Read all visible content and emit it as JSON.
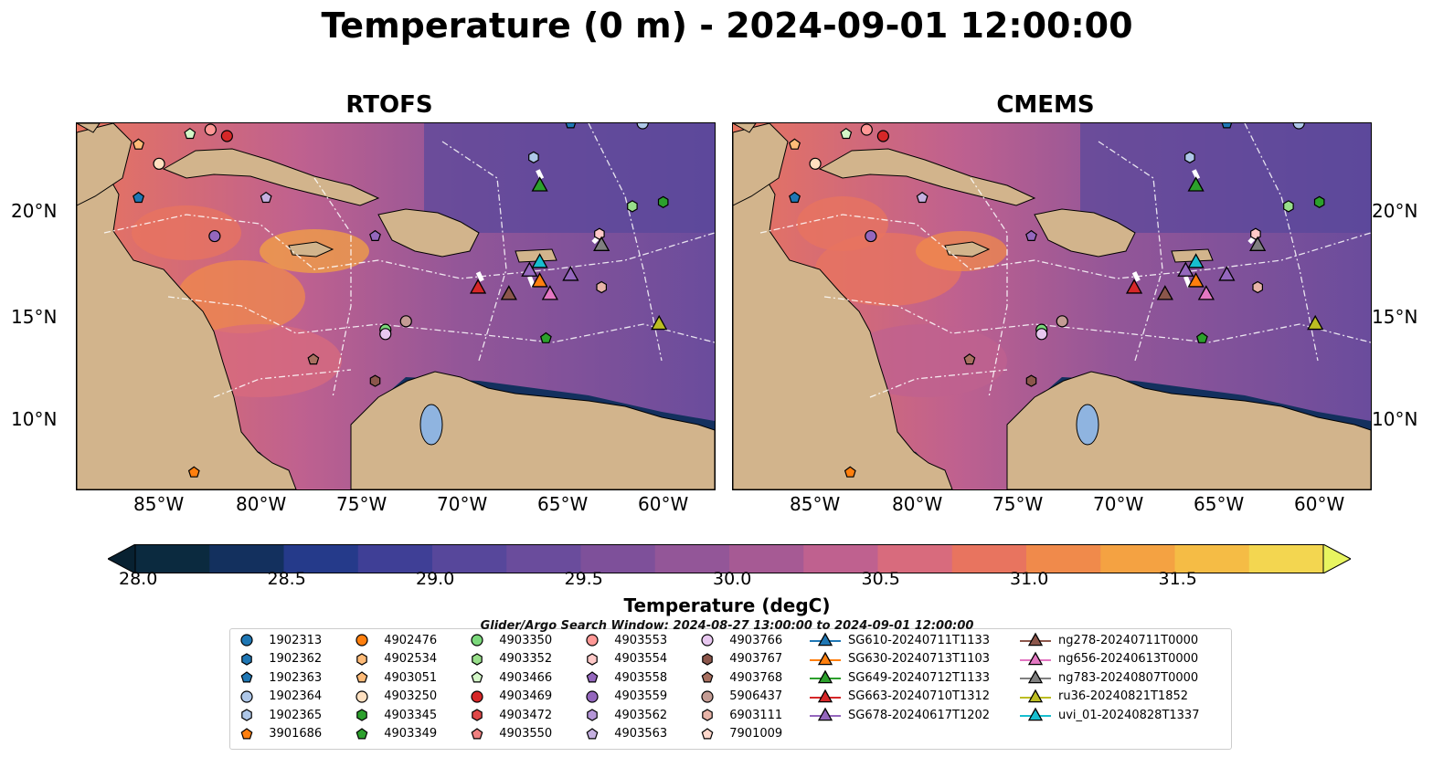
{
  "title": "Temperature (0 m) - 2024-09-01 12:00:00",
  "panels": [
    {
      "title": "RTOFS"
    },
    {
      "title": "CMEMS"
    }
  ],
  "axes": {
    "lon_ticks": [
      "85°W",
      "80°W",
      "75°W",
      "70°W",
      "65°W",
      "60°W"
    ],
    "lat_ticks": [
      "20°N",
      "15°N",
      "10°N"
    ]
  },
  "colorbar": {
    "label": "Temperature (degC)",
    "ticks": [
      "28.0",
      "28.5",
      "29.0",
      "29.5",
      "30.0",
      "30.5",
      "31.0",
      "31.5"
    ],
    "colors": [
      "#0b2a3f",
      "#13305e",
      "#253a8a",
      "#3f3f96",
      "#57479b",
      "#6a4c9c",
      "#7e509a",
      "#935698",
      "#a65a94",
      "#bf618f",
      "#d86b7d",
      "#e8745f",
      "#f08a4b",
      "#f4a242",
      "#f5bc45",
      "#f3d650"
    ],
    "under_color": "#082131",
    "over_color": "#e8f560"
  },
  "search_window": "Glider/Argo Search Window: 2024-08-27 13:00:00 to 2024-09-01 12:00:00",
  "legend": {
    "argo": [
      {
        "label": "1902313",
        "shape": "circle",
        "color": "#1f77b4"
      },
      {
        "label": "1902362",
        "shape": "hexagon",
        "color": "#1f77b4"
      },
      {
        "label": "1902363",
        "shape": "pentagon",
        "color": "#1f77b4"
      },
      {
        "label": "1902364",
        "shape": "circle",
        "color": "#aec7e8"
      },
      {
        "label": "1902365",
        "shape": "hexagon",
        "color": "#aec7e8"
      },
      {
        "label": "3901686",
        "shape": "pentagon",
        "color": "#ff7f0e"
      },
      {
        "label": "4902476",
        "shape": "circle",
        "color": "#ff7f0e"
      },
      {
        "label": "4902534",
        "shape": "hexagon",
        "color": "#ffbb78"
      },
      {
        "label": "4903051",
        "shape": "pentagon",
        "color": "#ffbb78"
      },
      {
        "label": "4903250",
        "shape": "circle",
        "color": "#ffe0c0"
      },
      {
        "label": "4903345",
        "shape": "hexagon",
        "color": "#2ca02c"
      },
      {
        "label": "4903349",
        "shape": "pentagon",
        "color": "#2ca02c"
      },
      {
        "label": "4903350",
        "shape": "circle",
        "color": "#7bd87b"
      },
      {
        "label": "4903352",
        "shape": "hexagon",
        "color": "#98df8a"
      },
      {
        "label": "4903466",
        "shape": "pentagon",
        "color": "#d4f7c8"
      },
      {
        "label": "4903469",
        "shape": "circle",
        "color": "#d62728"
      },
      {
        "label": "4903472",
        "shape": "hexagon",
        "color": "#e04848"
      },
      {
        "label": "4903550",
        "shape": "pentagon",
        "color": "#f08080"
      },
      {
        "label": "4903553",
        "shape": "circle",
        "color": "#ff9896"
      },
      {
        "label": "4903554",
        "shape": "hexagon",
        "color": "#ffc9c8"
      },
      {
        "label": "4903558",
        "shape": "pentagon",
        "color": "#9467bd"
      },
      {
        "label": "4903559",
        "shape": "circle",
        "color": "#9467bd"
      },
      {
        "label": "4903562",
        "shape": "hexagon",
        "color": "#b596d8"
      },
      {
        "label": "4903563",
        "shape": "pentagon",
        "color": "#c5b0e0"
      },
      {
        "label": "4903766",
        "shape": "circle",
        "color": "#e8c8f0"
      },
      {
        "label": "4903767",
        "shape": "hexagon",
        "color": "#8c564b"
      },
      {
        "label": "4903768",
        "shape": "pentagon",
        "color": "#a87060"
      },
      {
        "label": "5906437",
        "shape": "circle",
        "color": "#c49c94"
      },
      {
        "label": "6903111",
        "shape": "hexagon",
        "color": "#e8b4a8"
      },
      {
        "label": "7901009",
        "shape": "pentagon",
        "color": "#ffd8cc"
      }
    ],
    "gliders": [
      {
        "label": "SG610-20240711T1133",
        "color": "#1f77b4"
      },
      {
        "label": "SG630-20240713T1103",
        "color": "#ff7f0e"
      },
      {
        "label": "SG649-20240712T1133",
        "color": "#2ca02c"
      },
      {
        "label": "SG663-20240710T1312",
        "color": "#d62728"
      },
      {
        "label": "SG678-20240617T1202",
        "color": "#9467bd"
      },
      {
        "label": "ng278-20240711T0000",
        "color": "#8c564b"
      },
      {
        "label": "ng656-20240613T0000",
        "color": "#e377c2"
      },
      {
        "label": "ng783-20240807T0000",
        "color": "#7f7f7f"
      },
      {
        "label": "ru36-20240821T1852",
        "color": "#bcbd22"
      },
      {
        "label": "uvi_01-20240828T1337",
        "color": "#17becf"
      }
    ]
  }
}
